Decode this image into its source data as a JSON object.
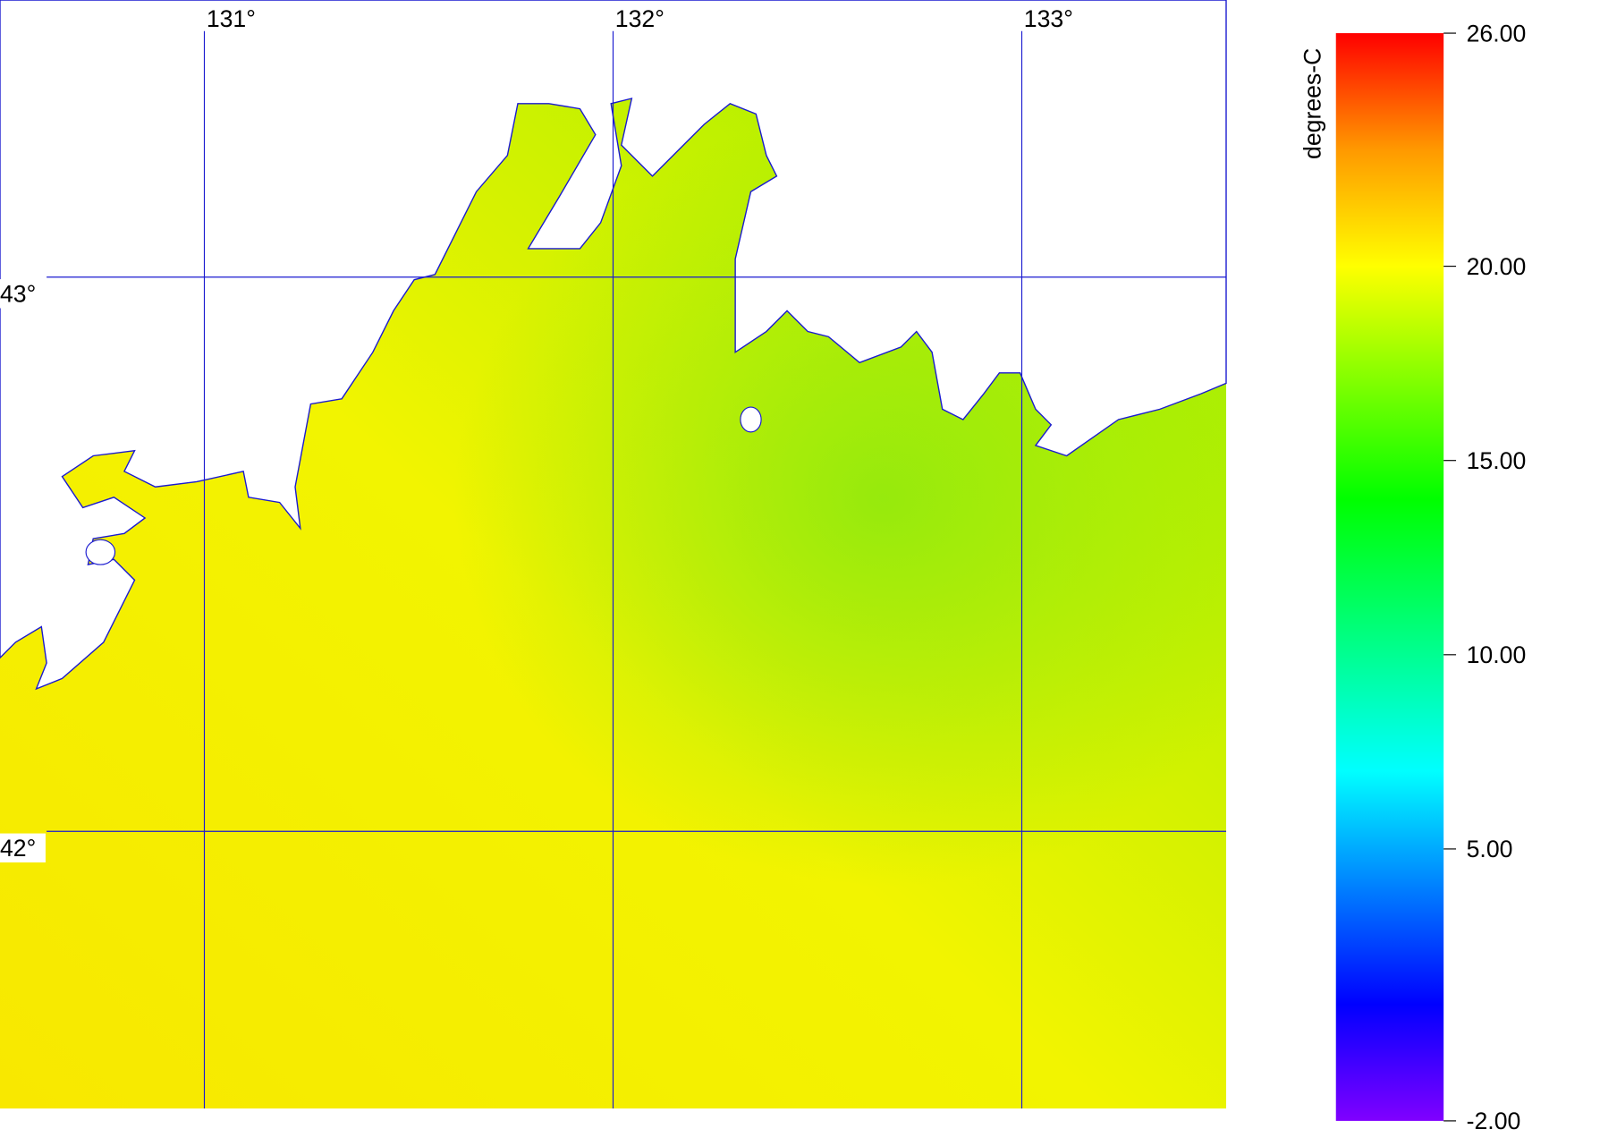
{
  "map": {
    "xlim": [
      130.5,
      133.5
    ],
    "ylim": [
      41.5,
      43.5
    ],
    "longitudes": [
      {
        "value": 131,
        "label": "131°"
      },
      {
        "value": 132,
        "label": "132°"
      },
      {
        "value": 133,
        "label": "133°"
      }
    ],
    "latitudes": [
      {
        "value": 43,
        "label": "43°"
      },
      {
        "value": 42,
        "label": "42°"
      }
    ]
  },
  "colorbar": {
    "title": "degrees-C",
    "lim": [
      -2,
      26
    ],
    "ticks": [
      {
        "value": 26,
        "label": "26.00"
      },
      {
        "value": 20,
        "label": "20.00"
      },
      {
        "value": 15,
        "label": "15.00"
      },
      {
        "value": 10,
        "label": "10.00"
      },
      {
        "value": 5,
        "label": "5.00"
      },
      {
        "value": -2,
        "label": "-2.00"
      }
    ],
    "colormap": [
      {
        "value": -2,
        "color": "#8000ff"
      },
      {
        "value": 1,
        "color": "#0000ff"
      },
      {
        "value": 7,
        "color": "#00ffff"
      },
      {
        "value": 14,
        "color": "#00ff00"
      },
      {
        "value": 20,
        "color": "#ffff00"
      },
      {
        "value": 23,
        "color": "#ff9900"
      },
      {
        "value": 26,
        "color": "#ff0000"
      }
    ]
  }
}
